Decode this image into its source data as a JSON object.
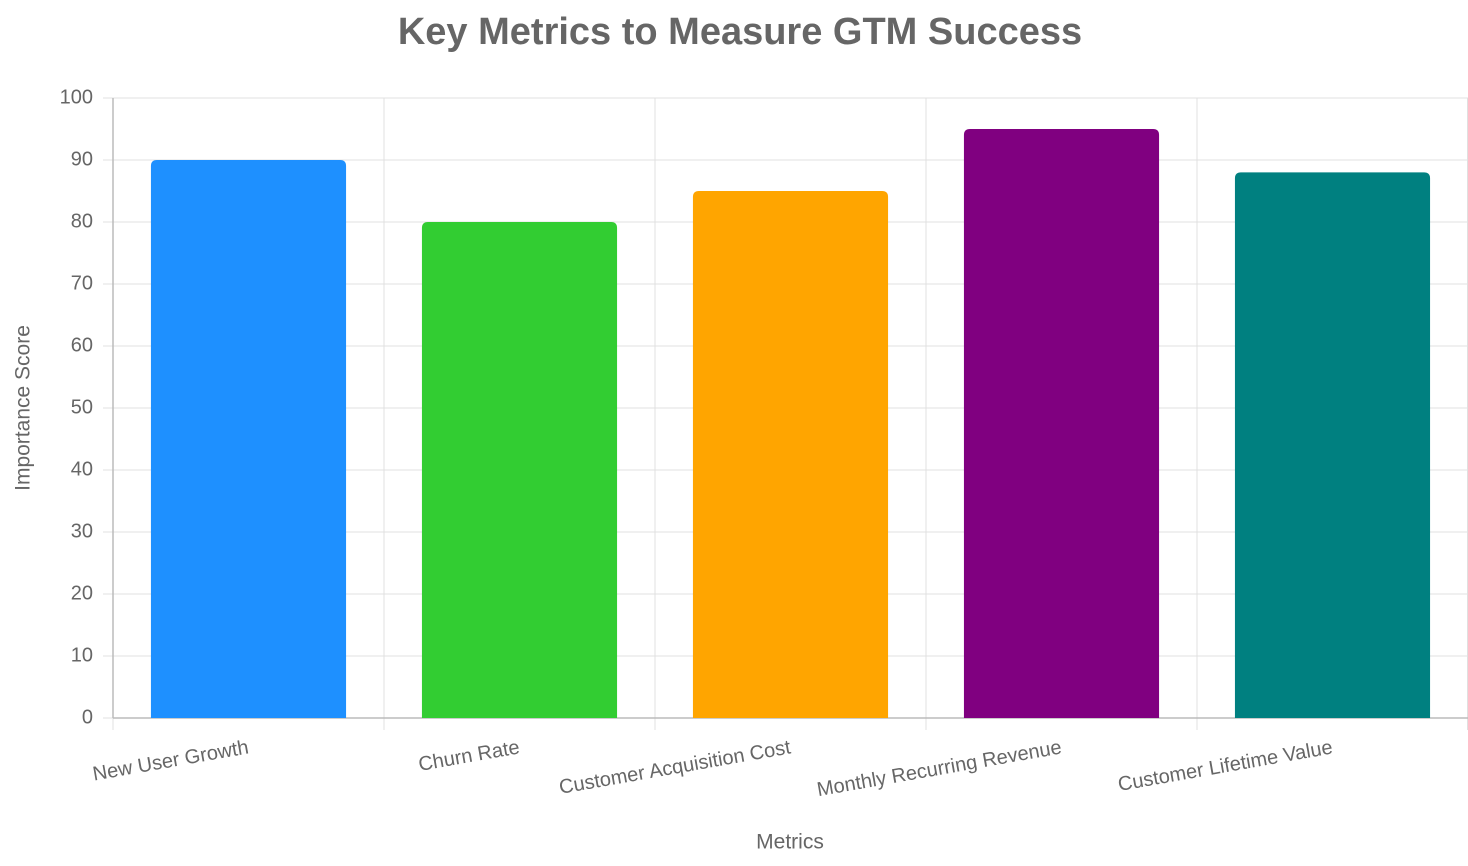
{
  "chart_data": {
    "type": "bar",
    "title": "Key Metrics to Measure GTM Success",
    "x_label": "Metrics",
    "y_label": "Importance Score",
    "categories": [
      "New User Growth",
      "Churn Rate",
      "Customer Acquisition Cost",
      "Monthly Recurring Revenue",
      "Customer Lifetime Value"
    ],
    "values": [
      90,
      80,
      85,
      95,
      88
    ],
    "colors": [
      "#1E90FF",
      "#32CD32",
      "#FFA500",
      "#800080",
      "#008080"
    ],
    "ylim": [
      0,
      100
    ],
    "yticks": [
      0,
      10,
      20,
      30,
      40,
      50,
      60,
      70,
      80,
      90,
      100
    ],
    "grid": true
  }
}
